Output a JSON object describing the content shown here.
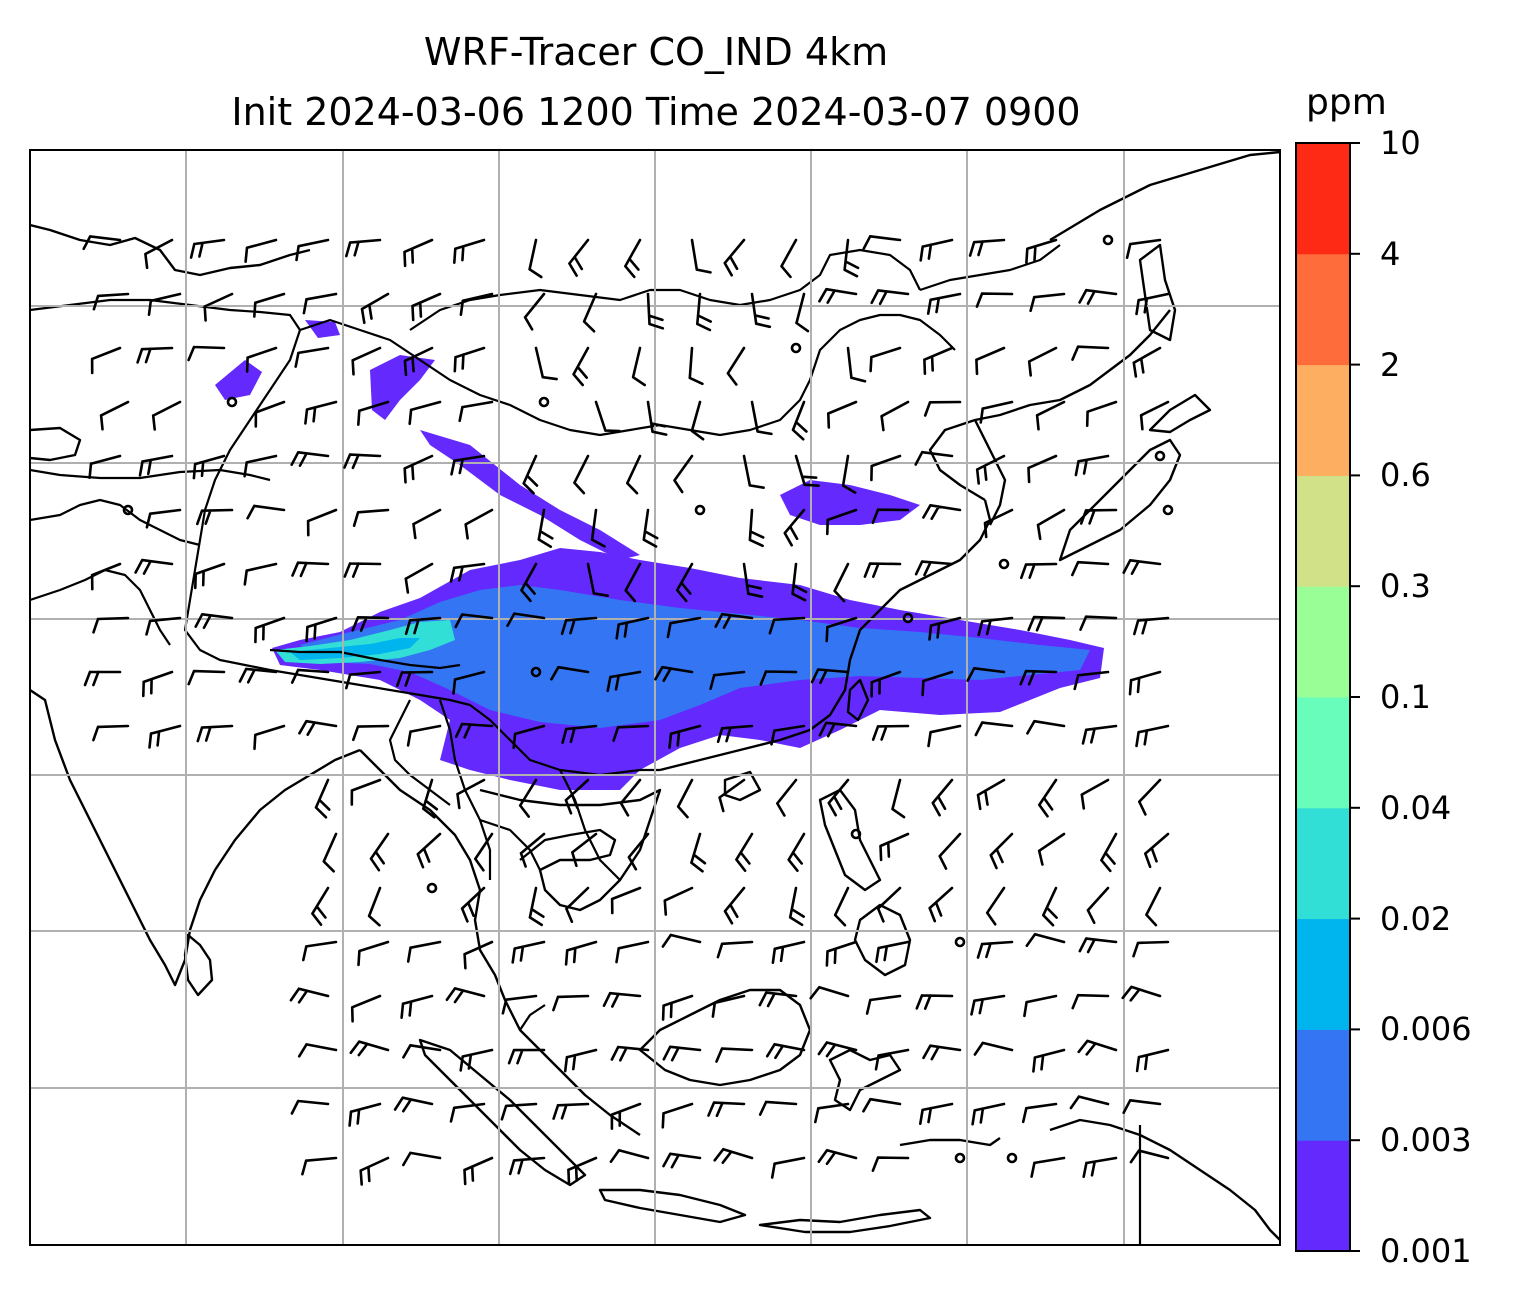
{
  "title": {
    "line1": "WRF-Tracer CO_IND 4km",
    "line2": "Init 2024-03-06 1200 Time 2024-03-07 0900"
  },
  "colorbar": {
    "unit": "ppm",
    "ticks": [
      "0.001",
      "0.003",
      "0.006",
      "0.02",
      "0.04",
      "0.1",
      "0.3",
      "0.6",
      "2",
      "4",
      "10"
    ],
    "colors": [
      "#6429fd",
      "#3475f4",
      "#00b4ee",
      "#31dfd6",
      "#68fdbb",
      "#9afe96",
      "#d0e187",
      "#feae60",
      "#fe6c3b",
      "#fe2a16"
    ]
  },
  "map": {
    "overlay": "wind barbs",
    "gridlines": true
  }
}
